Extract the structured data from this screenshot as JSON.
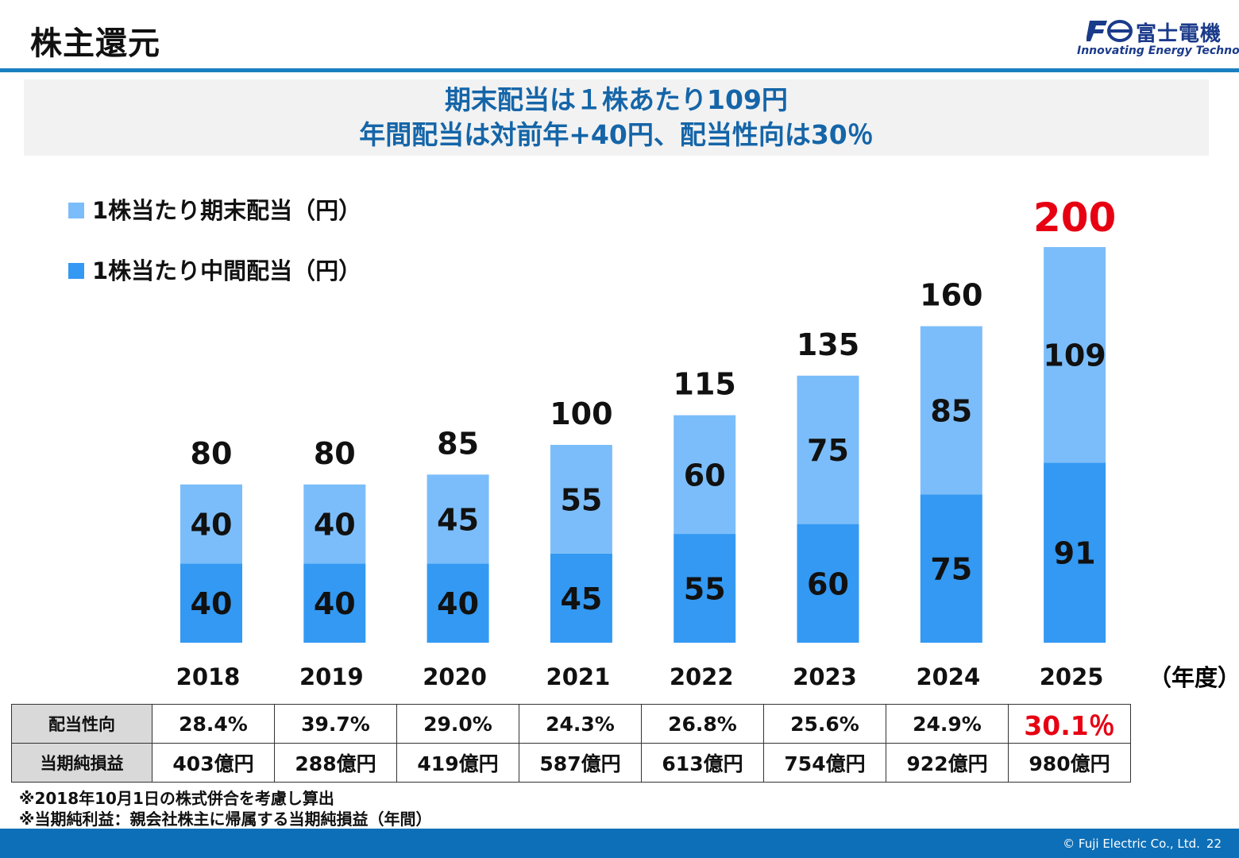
{
  "header": {
    "title": "株主還元",
    "logo_mark": "Fe",
    "company_name": "富士電機",
    "tagline": "Innovating Energy Technology"
  },
  "banner": {
    "line1": "期末配当は１株あたり109円",
    "line2": "年間配当は対前年+40円、配当性向は30％"
  },
  "colors": {
    "interim": "#3399f3",
    "final": "#7bbdfa",
    "highlight": "#e60012",
    "accent": "#1a7fc1"
  },
  "chart_data": {
    "type": "bar",
    "stacked": true,
    "categories": [
      "2018",
      "2019",
      "2020",
      "2021",
      "2022",
      "2023",
      "2024",
      "2025"
    ],
    "series": [
      {
        "name": "1株当たり中間配当（円）",
        "values": [
          40,
          40,
          40,
          45,
          55,
          60,
          75,
          91
        ]
      },
      {
        "name": "1株当たり期末配当（円）",
        "values": [
          40,
          40,
          45,
          55,
          60,
          75,
          85,
          109
        ]
      }
    ],
    "totals": [
      "80",
      "80",
      "85",
      "100",
      "115",
      "135",
      "160",
      "200"
    ],
    "highlight_total_index": 7,
    "x_unit": "（年度）",
    "ylim": [
      0,
      200
    ],
    "grid": false,
    "legend_position": "top-left"
  },
  "table": {
    "rows": [
      {
        "label": "配当性向",
        "values": [
          "28.4%",
          "39.7%",
          "29.0%",
          "24.3%",
          "26.8%",
          "25.6%",
          "24.9%",
          "30.1％"
        ],
        "highlight_index": 7
      },
      {
        "label": "当期純損益",
        "values": [
          "403億円",
          "288億円",
          "419億円",
          "587億円",
          "613億円",
          "754億円",
          "922億円",
          "980億円"
        ]
      }
    ]
  },
  "notes": [
    "※2018年10月1日の株式併合を考慮し算出",
    "※当期純利益：親会社株主に帰属する当期純損益（年間）"
  ],
  "footer": {
    "copyright": "© Fuji Electric Co., Ltd.",
    "page_number": "22"
  }
}
